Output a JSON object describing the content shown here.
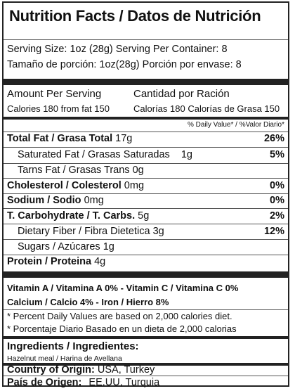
{
  "title": "Nutrition Facts / Datos de Nutrición",
  "serving": {
    "line1": "Serving Size: 1oz (28g) Serving Per Container: 8",
    "line2": "Tamaño de porción: 1oz(28g) Porción por envase: 8"
  },
  "amount": {
    "left_header": "Amount Per Serving",
    "right_header": "Cantidad por Ración",
    "left_calories": "Calories 180  from fat 150",
    "right_calories": "Calorías 180 Calorías de Grasa 150",
    "dv_header": "% Daily Value* / %Valor Diario*"
  },
  "nutrients": [
    {
      "name": "Total Fat / Grasa Total",
      "amount": "17g",
      "dv": "26%"
    },
    {
      "name": "Saturated Fat / Grasas Saturadas",
      "amount": "1g",
      "dv": "5%"
    },
    {
      "name": "Tarns Fat / Grasas Trans",
      "amount": "0g",
      "dv": ""
    },
    {
      "name": "Cholesterol / Colesterol",
      "amount": "0mg",
      "dv": "0%"
    },
    {
      "name": "Sodium / Sodio",
      "amount": "0mg",
      "dv": "0%"
    },
    {
      "name": "T. Carbohydrate / T. Carbs.",
      "amount": "5g",
      "dv": "2%"
    },
    {
      "name": "Dietary Fiber / Fibra Dietetica",
      "amount": "3g",
      "dv": "12%"
    },
    {
      "name": "Sugars / Azúcares",
      "amount": "1g",
      "dv": ""
    },
    {
      "name": "Protein / Proteina",
      "amount": "4g",
      "dv": ""
    }
  ],
  "vitamins": {
    "line1": "Vitamin A / Vitamina A 0% - Vitamin C / Vitamina C 0%",
    "line2": "Calcium / Calcio 4% - Iron / Hierro 8%"
  },
  "footnotes": {
    "line1": "* Percent Daily Values are based on 2,000 calories diet.",
    "line2": "* Porcentaje Diario Basado en un dieta de 2,000 calorias"
  },
  "ingredients": {
    "header": "Ingredients / Ingredientes:",
    "text": "Hazelnut meal / Harina de Avellana"
  },
  "origin": {
    "label_en": "Country of Origin:",
    "value_en": "USA, Turkey",
    "label_es": "País de Origen:",
    "value_es": "EE.UU, Turquia"
  }
}
